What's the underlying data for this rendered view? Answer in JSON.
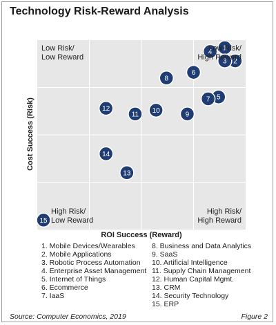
{
  "title": "Technology Risk-Reward Analysis",
  "chart_data": {
    "type": "scatter",
    "xlabel": "ROI Success (Reward)",
    "ylabel": "Cost Success (Risk)",
    "xlim": [
      0,
      100
    ],
    "ylim": [
      0,
      100
    ],
    "grid": true,
    "quadrant_labels": {
      "top_left": [
        "Low Risk/",
        "Low Reward"
      ],
      "top_right": [
        "Low Risk/",
        "High Reward"
      ],
      "bottom_left": [
        "High Risk/",
        "Low Reward"
      ],
      "bottom_right": [
        "High Risk/",
        "High Reward"
      ]
    },
    "points": [
      {
        "label": "1",
        "x": 90,
        "y": 96
      },
      {
        "label": "2",
        "x": 95,
        "y": 89
      },
      {
        "label": "3",
        "x": 90,
        "y": 89
      },
      {
        "label": "4",
        "x": 83,
        "y": 94
      },
      {
        "label": "5",
        "x": 87,
        "y": 70
      },
      {
        "label": "6",
        "x": 75,
        "y": 83
      },
      {
        "label": "7",
        "x": 82,
        "y": 69
      },
      {
        "label": "8",
        "x": 62,
        "y": 80
      },
      {
        "label": "9",
        "x": 72,
        "y": 61
      },
      {
        "label": "10",
        "x": 57,
        "y": 63
      },
      {
        "label": "11",
        "x": 47,
        "y": 61
      },
      {
        "label": "12",
        "x": 33,
        "y": 64
      },
      {
        "label": "13",
        "x": 43,
        "y": 30
      },
      {
        "label": "14",
        "x": 33,
        "y": 40
      },
      {
        "label": "15",
        "x": 3,
        "y": 5
      }
    ]
  },
  "legend": [
    "1. Mobile Devices/Wearables",
    "2. Mobile Applications",
    "3. Robotic Process Automation",
    "4. Enterprise Asset Management",
    "5. Internet of Things",
    "6. Ecommerce",
    "7. IaaS",
    "8. Business and Data Analytics",
    "9. SaaS",
    "10. Artificial Intelligence",
    "11. Supply Chain Management",
    "12. Human Capital Mgmt.",
    "13. CRM",
    "14. Security Technology",
    "15. ERP"
  ],
  "source": "Source: Computer Economics, 2019",
  "figure": "Figure 2",
  "colors": {
    "marker_fill": "#1f3d73",
    "marker_stroke": "#ffffff",
    "plot_bg": "#e7e7e7",
    "gridline": "#ffffff"
  }
}
